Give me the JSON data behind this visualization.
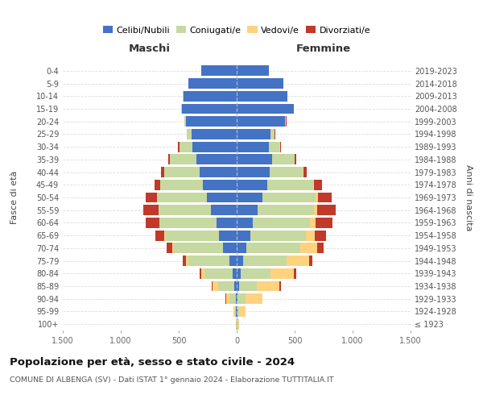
{
  "age_groups": [
    "100+",
    "95-99",
    "90-94",
    "85-89",
    "80-84",
    "75-79",
    "70-74",
    "65-69",
    "60-64",
    "55-59",
    "50-54",
    "45-49",
    "40-44",
    "35-39",
    "30-34",
    "25-29",
    "20-24",
    "15-19",
    "10-14",
    "5-9",
    "0-4"
  ],
  "birth_years": [
    "≤ 1923",
    "1924-1928",
    "1929-1933",
    "1934-1938",
    "1939-1943",
    "1944-1948",
    "1949-1953",
    "1954-1958",
    "1959-1963",
    "1964-1968",
    "1969-1973",
    "1974-1978",
    "1979-1983",
    "1984-1988",
    "1989-1993",
    "1994-1998",
    "1999-2003",
    "2004-2008",
    "2009-2013",
    "2014-2018",
    "2019-2023"
  ],
  "maschi": {
    "celibi": [
      3,
      5,
      10,
      20,
      35,
      60,
      120,
      150,
      175,
      220,
      260,
      295,
      320,
      350,
      380,
      390,
      440,
      475,
      460,
      420,
      305
    ],
    "coniugati": [
      3,
      12,
      55,
      140,
      240,
      360,
      430,
      470,
      490,
      455,
      425,
      365,
      305,
      225,
      115,
      38,
      12,
      4,
      2,
      0,
      0
    ],
    "vedovi": [
      1,
      8,
      28,
      48,
      28,
      18,
      8,
      5,
      3,
      2,
      2,
      1,
      1,
      0,
      0,
      0,
      0,
      0,
      0,
      0,
      0
    ],
    "divorziati": [
      0,
      0,
      4,
      10,
      14,
      28,
      48,
      78,
      118,
      128,
      98,
      48,
      28,
      14,
      9,
      4,
      2,
      0,
      0,
      0,
      0
    ]
  },
  "femmine": {
    "nubili": [
      3,
      5,
      10,
      18,
      35,
      55,
      85,
      115,
      140,
      180,
      225,
      265,
      285,
      305,
      275,
      295,
      415,
      490,
      435,
      400,
      275
    ],
    "coniugate": [
      3,
      15,
      65,
      155,
      255,
      375,
      465,
      485,
      495,
      485,
      455,
      395,
      285,
      195,
      95,
      32,
      12,
      4,
      2,
      0,
      0
    ],
    "vedove": [
      12,
      55,
      145,
      195,
      205,
      195,
      145,
      75,
      45,
      28,
      18,
      8,
      4,
      3,
      2,
      1,
      0,
      0,
      0,
      0,
      0
    ],
    "divorziate": [
      0,
      0,
      4,
      14,
      18,
      28,
      58,
      98,
      148,
      158,
      118,
      68,
      28,
      14,
      7,
      3,
      1,
      0,
      0,
      0,
      0
    ]
  },
  "colors": {
    "celibi": "#4472C4",
    "coniugati": "#c5d9a0",
    "vedovi": "#FFD280",
    "divorziati": "#C0392B"
  },
  "xlim": 1500,
  "title": "Popolazione per età, sesso e stato civile - 2024",
  "subtitle": "COMUNE DI ALBENGA (SV) - Dati ISTAT 1° gennaio 2024 - Elaborazione TUTTITALIA.IT",
  "xlabel_left": "Maschi",
  "xlabel_right": "Femmine",
  "ylabel_left": "Fasce di età",
  "ylabel_right": "Anni di nascita",
  "legend_labels": [
    "Celibi/Nubili",
    "Coniugati/e",
    "Vedovi/e",
    "Divorziati/e"
  ]
}
